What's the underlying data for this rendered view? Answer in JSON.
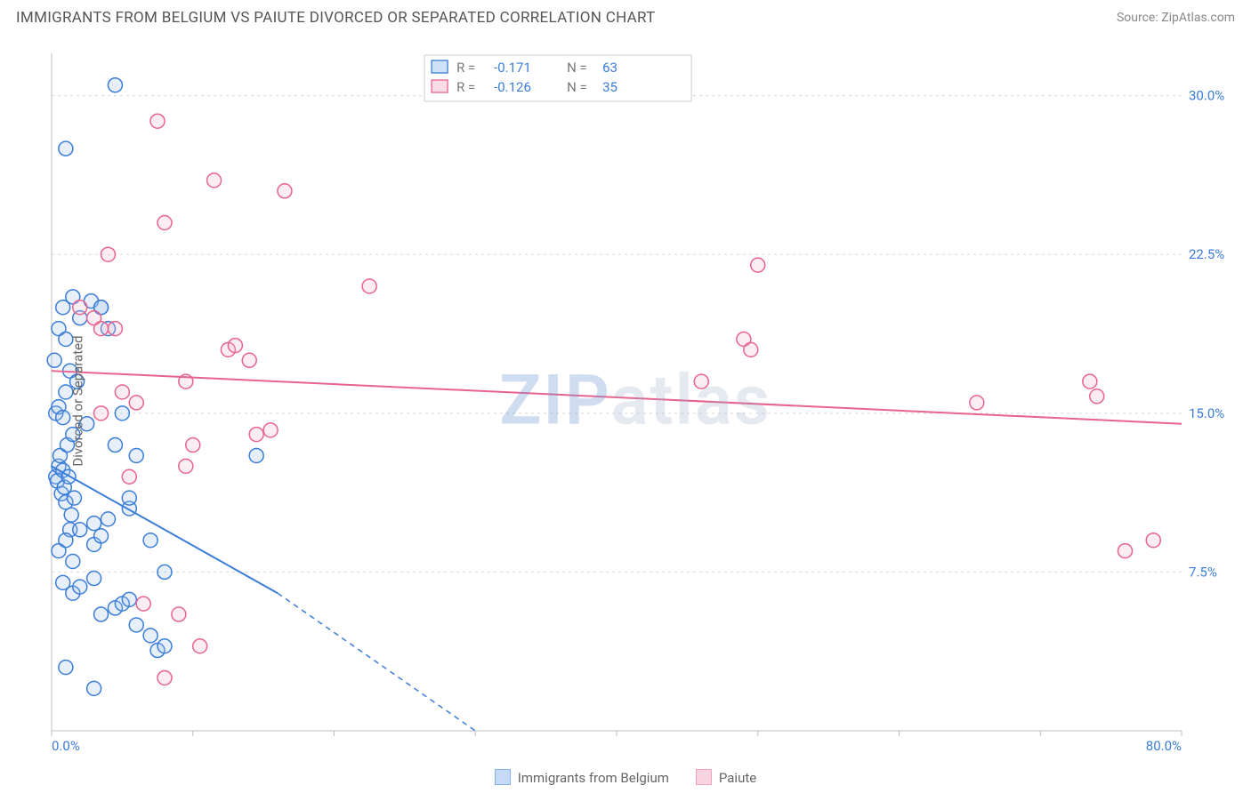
{
  "title": "IMMIGRANTS FROM BELGIUM VS PAIUTE DIVORCED OR SEPARATED CORRELATION CHART",
  "source_label": "Source: ",
  "source_name": "ZipAtlas.com",
  "watermark": "ZIPatlas",
  "ylabel": "Divorced or Separated",
  "xlim": [
    0,
    80
  ],
  "ylim": [
    0,
    32
  ],
  "xticks": [
    0,
    10,
    20,
    30,
    40,
    50,
    60,
    70,
    80
  ],
  "yticks": [
    7.5,
    15.0,
    22.5,
    30.0
  ],
  "ytick_labels": [
    "7.5%",
    "15.0%",
    "22.5%",
    "30.0%"
  ],
  "x_min_label": "0.0%",
  "x_max_label": "80.0%",
  "grid_color": "#d8d8d8",
  "axis_color": "#bfbfbf",
  "tick_label_color": "#3b7dd8",
  "background_color": "#ffffff",
  "marker_radius": 8,
  "marker_stroke_width": 1.5,
  "marker_fill_opacity": 0.25,
  "trend_line_width": 2,
  "dash_pattern": "6 5",
  "series": [
    {
      "name": "Immigrants from Belgium",
      "color": "#3b7dd8",
      "fill": "#9fc3ed",
      "correlation": {
        "R": "-0.171",
        "N": "63"
      },
      "trend": {
        "x1": 0,
        "y1": 12.5,
        "x2_solid": 16,
        "y2_solid": 6.5,
        "x2": 30,
        "y2": 0
      },
      "points": [
        [
          0.3,
          12.0
        ],
        [
          0.4,
          11.8
        ],
        [
          0.5,
          12.5
        ],
        [
          0.6,
          13.0
        ],
        [
          0.7,
          11.2
        ],
        [
          0.8,
          12.3
        ],
        [
          0.9,
          11.5
        ],
        [
          1.0,
          10.8
        ],
        [
          1.1,
          13.5
        ],
        [
          1.2,
          12.0
        ],
        [
          1.3,
          9.5
        ],
        [
          1.4,
          10.2
        ],
        [
          1.5,
          14.0
        ],
        [
          1.6,
          11.0
        ],
        [
          0.3,
          15.0
        ],
        [
          0.5,
          15.3
        ],
        [
          0.8,
          14.8
        ],
        [
          1.0,
          16.0
        ],
        [
          1.3,
          17.0
        ],
        [
          0.2,
          17.5
        ],
        [
          0.5,
          19.0
        ],
        [
          0.8,
          20.0
        ],
        [
          1.5,
          20.5
        ],
        [
          2.8,
          20.3
        ],
        [
          3.5,
          20.0
        ],
        [
          1.0,
          18.5
        ],
        [
          3.0,
          9.8
        ],
        [
          4.0,
          10.0
        ],
        [
          0.5,
          8.5
        ],
        [
          1.0,
          9.0
        ],
        [
          1.5,
          8.0
        ],
        [
          2.0,
          9.5
        ],
        [
          3.0,
          8.8
        ],
        [
          3.5,
          9.2
        ],
        [
          0.8,
          7.0
        ],
        [
          1.5,
          6.5
        ],
        [
          2.0,
          6.8
        ],
        [
          3.0,
          7.2
        ],
        [
          3.5,
          5.5
        ],
        [
          4.5,
          5.8
        ],
        [
          5.0,
          6.0
        ],
        [
          5.5,
          6.2
        ],
        [
          6.0,
          5.0
        ],
        [
          7.0,
          4.5
        ],
        [
          7.5,
          3.8
        ],
        [
          8.0,
          4.0
        ],
        [
          1.0,
          3.0
        ],
        [
          3.0,
          2.0
        ],
        [
          8.0,
          7.5
        ],
        [
          1.0,
          27.5
        ],
        [
          4.5,
          30.5
        ],
        [
          3.5,
          20.0
        ],
        [
          2.0,
          19.5
        ],
        [
          4.0,
          19.0
        ],
        [
          5.0,
          15.0
        ],
        [
          4.5,
          13.5
        ],
        [
          5.5,
          10.5
        ],
        [
          6.0,
          13.0
        ],
        [
          7.0,
          9.0
        ],
        [
          2.5,
          14.5
        ],
        [
          1.8,
          16.5
        ],
        [
          14.5,
          13.0
        ],
        [
          5.5,
          11.0
        ]
      ]
    },
    {
      "name": "Paiute",
      "color": "#e8638f",
      "fill": "#f5b9cd",
      "correlation": {
        "R": "-0.126",
        "N": "35"
      },
      "trend": {
        "x1": 0,
        "y1": 17.0,
        "x2_solid": 80,
        "y2_solid": 14.5,
        "x2": 80,
        "y2": 14.5
      },
      "points": [
        [
          2.0,
          20.0
        ],
        [
          3.0,
          19.5
        ],
        [
          3.5,
          19.0
        ],
        [
          5.0,
          16.0
        ],
        [
          6.0,
          15.5
        ],
        [
          7.5,
          28.8
        ],
        [
          8.0,
          24.0
        ],
        [
          9.5,
          16.5
        ],
        [
          10.0,
          13.5
        ],
        [
          11.5,
          26.0
        ],
        [
          12.5,
          18.0
        ],
        [
          13.0,
          18.2
        ],
        [
          14.0,
          17.5
        ],
        [
          14.5,
          14.0
        ],
        [
          15.5,
          14.2
        ],
        [
          16.5,
          25.5
        ],
        [
          22.5,
          21.0
        ],
        [
          4.0,
          22.5
        ],
        [
          5.5,
          12.0
        ],
        [
          6.5,
          6.0
        ],
        [
          8.0,
          2.5
        ],
        [
          9.0,
          5.5
        ],
        [
          9.5,
          12.5
        ],
        [
          10.5,
          4.0
        ],
        [
          46.0,
          16.5
        ],
        [
          49.0,
          18.5
        ],
        [
          49.5,
          18.0
        ],
        [
          50.0,
          22.0
        ],
        [
          65.5,
          15.5
        ],
        [
          73.5,
          16.5
        ],
        [
          74.0,
          15.8
        ],
        [
          76.0,
          8.5
        ],
        [
          78.0,
          9.0
        ],
        [
          3.5,
          15.0
        ],
        [
          4.5,
          19.0
        ]
      ]
    }
  ],
  "bottom_legend": [
    {
      "label": "Immigrants from Belgium",
      "series": 0
    },
    {
      "label": "Paiute",
      "series": 1
    }
  ]
}
